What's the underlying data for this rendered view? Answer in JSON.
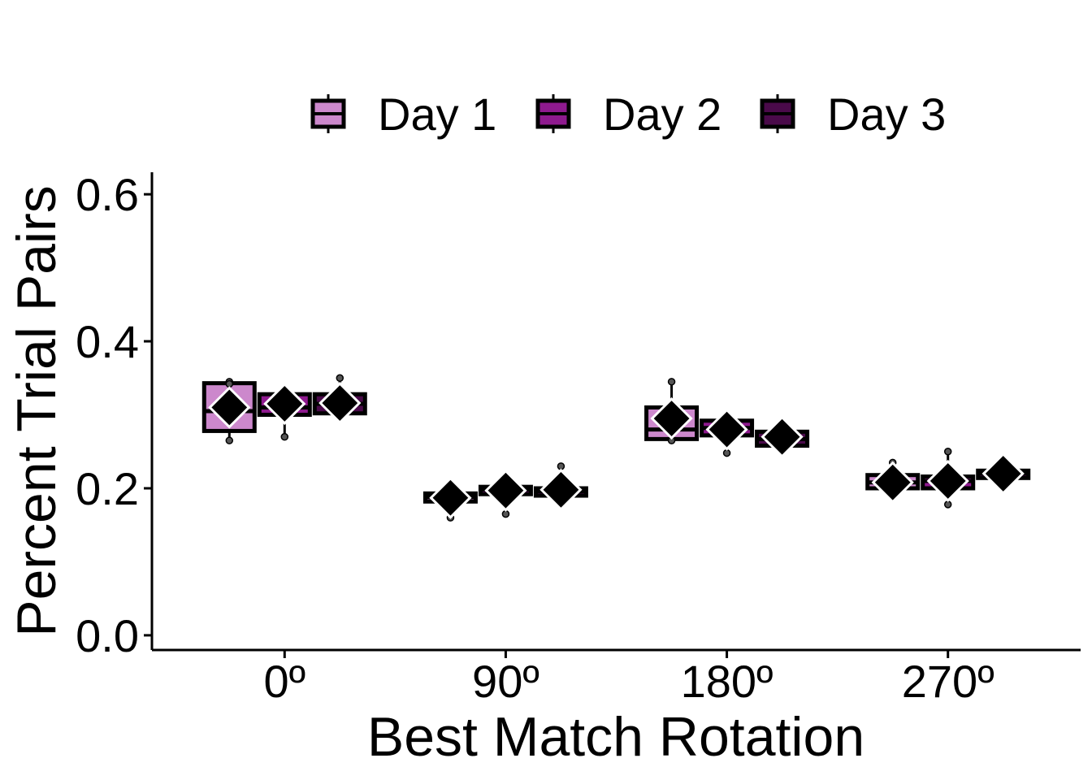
{
  "chart_data": {
    "type": "boxplot",
    "xlabel": "Best Match Rotation",
    "ylabel": "Percent Trial Pairs",
    "categories": [
      "0º",
      "90º",
      "180º",
      "270º"
    ],
    "ylim": [
      -0.02,
      0.63
    ],
    "yticks": [
      0.0,
      0.2,
      0.4,
      0.6
    ],
    "ytick_labels": [
      "0.0",
      "0.2",
      "0.4",
      "0.6"
    ],
    "grid": false,
    "legend_position": "top",
    "mean_marker": "diamond",
    "series": [
      {
        "name": "Day 1",
        "color": "#cc88cc",
        "boxes": [
          {
            "q1": 0.278,
            "median": 0.305,
            "q3": 0.343,
            "whisker_low": 0.265,
            "whisker_high": 0.345,
            "mean": 0.31,
            "points": [
              0.265,
              0.345,
              0.342
            ]
          },
          {
            "q1": 0.182,
            "median": 0.188,
            "q3": 0.193,
            "whisker_low": 0.16,
            "whisker_high": 0.193,
            "mean": 0.187,
            "points": [
              0.16
            ]
          },
          {
            "q1": 0.267,
            "median": 0.28,
            "q3": 0.31,
            "whisker_low": 0.265,
            "whisker_high": 0.345,
            "mean": 0.295,
            "points": [
              0.265,
              0.345
            ]
          },
          {
            "q1": 0.2,
            "median": 0.208,
            "q3": 0.218,
            "whisker_low": 0.2,
            "whisker_high": 0.235,
            "mean": 0.208,
            "points": [
              0.235
            ]
          }
        ]
      },
      {
        "name": "Day 2",
        "color": "#8e1a8e",
        "boxes": [
          {
            "q1": 0.3,
            "median": 0.31,
            "q3": 0.328,
            "whisker_low": 0.27,
            "whisker_high": 0.33,
            "mean": 0.315,
            "points": [
              0.27
            ]
          },
          {
            "q1": 0.192,
            "median": 0.198,
            "q3": 0.202,
            "whisker_low": 0.165,
            "whisker_high": 0.202,
            "mean": 0.197,
            "points": [
              0.165
            ]
          },
          {
            "q1": 0.272,
            "median": 0.282,
            "q3": 0.292,
            "whisker_low": 0.248,
            "whisker_high": 0.292,
            "mean": 0.28,
            "points": [
              0.248
            ]
          },
          {
            "q1": 0.2,
            "median": 0.21,
            "q3": 0.216,
            "whisker_low": 0.178,
            "whisker_high": 0.25,
            "mean": 0.21,
            "points": [
              0.178,
              0.25
            ]
          }
        ]
      },
      {
        "name": "Day 3",
        "color": "#4a0a4a",
        "boxes": [
          {
            "q1": 0.302,
            "median": 0.315,
            "q3": 0.328,
            "whisker_low": 0.3,
            "whisker_high": 0.35,
            "mean": 0.316,
            "points": [
              0.35
            ]
          },
          {
            "q1": 0.19,
            "median": 0.196,
            "q3": 0.2,
            "whisker_low": 0.19,
            "whisker_high": 0.23,
            "mean": 0.198,
            "points": [
              0.23
            ]
          },
          {
            "q1": 0.258,
            "median": 0.267,
            "q3": 0.277,
            "whisker_low": 0.258,
            "whisker_high": 0.277,
            "mean": 0.27,
            "points": []
          },
          {
            "q1": 0.214,
            "median": 0.22,
            "q3": 0.224,
            "whisker_low": 0.214,
            "whisker_high": 0.224,
            "mean": 0.22,
            "points": []
          }
        ]
      }
    ]
  }
}
